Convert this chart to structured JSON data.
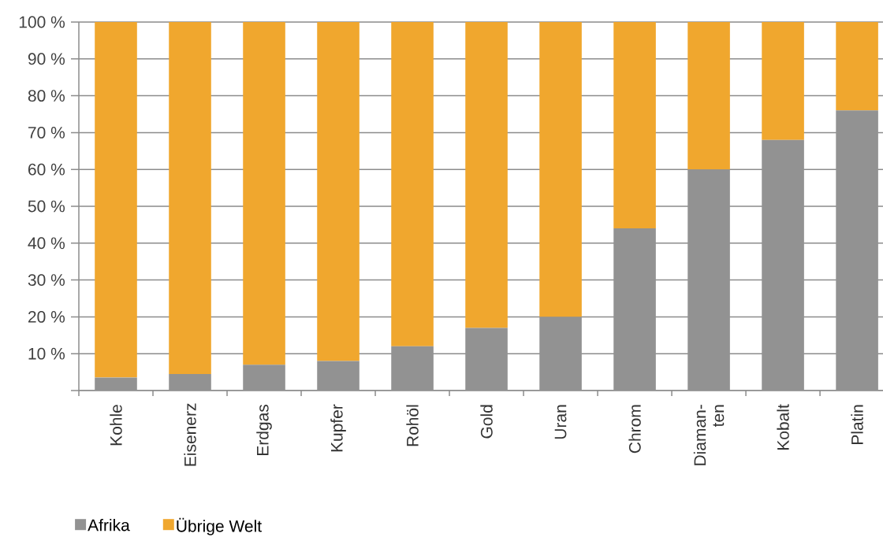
{
  "chart_data": {
    "type": "bar",
    "stacked": true,
    "categories": [
      "Kohle",
      "Eisenerz",
      "Erdgas",
      "Kupfer",
      "Rohöl",
      "Gold",
      "Uran",
      "Chrom",
      "Diaman-ten",
      "Kobalt",
      "Platin"
    ],
    "series": [
      {
        "name": "Afrika",
        "color": "#929292",
        "values": [
          3.5,
          4.5,
          7,
          8,
          12,
          17,
          20,
          44,
          60,
          68,
          76
        ]
      },
      {
        "name": "Übrige Welt",
        "color": "#f0a72e",
        "values": [
          96.5,
          95.5,
          93,
          92,
          88,
          83,
          80,
          56,
          40,
          32,
          24
        ]
      }
    ],
    "ylim": [
      0,
      100
    ],
    "yticks": [
      {
        "value": 0,
        "label": null
      },
      {
        "value": 10,
        "label": "10 %"
      },
      {
        "value": 20,
        "label": "20 %"
      },
      {
        "value": 30,
        "label": "30 %"
      },
      {
        "value": 40,
        "label": "40 %"
      },
      {
        "value": 50,
        "label": "50 %"
      },
      {
        "value": 60,
        "label": "60 %"
      },
      {
        "value": 70,
        "label": "70 %"
      },
      {
        "value": 80,
        "label": "80 %"
      },
      {
        "value": 90,
        "label": "90 %"
      },
      {
        "value": 100,
        "label": "100 %"
      }
    ],
    "grid": "y",
    "legend": "bottom left"
  }
}
